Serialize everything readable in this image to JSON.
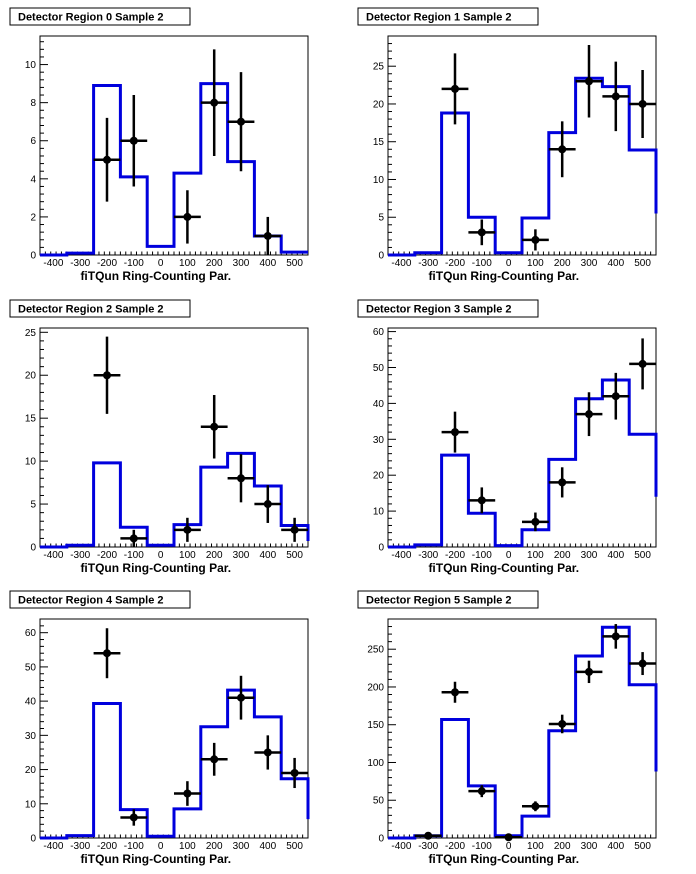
{
  "chart_data": [
    {
      "type": "histogram",
      "title": "Detector Region 0 Sample 2",
      "xlabel": "fiTQun Ring-Counting Par.",
      "xlim": [
        -450,
        550
      ],
      "ylim": [
        0,
        11.5
      ],
      "x_ticks": [
        -400,
        -300,
        -200,
        -100,
        0,
        100,
        200,
        300,
        400,
        500
      ],
      "y_ticks": [
        0,
        2,
        4,
        6,
        8,
        10
      ],
      "mc_bins": [
        -450,
        -350,
        -250,
        -150,
        -50,
        50,
        150,
        250,
        350,
        450,
        550
      ],
      "mc_values": [
        0,
        0.1,
        8.9,
        4.1,
        0.45,
        4.3,
        9.0,
        4.9,
        1.0,
        0.15
      ],
      "data_points": {
        "x": [
          -200,
          -100,
          100,
          200,
          300,
          400
        ],
        "y": [
          5,
          6,
          2,
          8,
          7,
          1
        ],
        "yerr": [
          2.2,
          2.4,
          1.4,
          2.8,
          2.6,
          1.0
        ]
      }
    },
    {
      "type": "histogram",
      "title": "Detector Region 1 Sample 2",
      "xlabel": "fiTQun Ring-Counting Par.",
      "xlim": [
        -450,
        550
      ],
      "ylim": [
        0,
        29
      ],
      "x_ticks": [
        -400,
        -300,
        -200,
        -100,
        0,
        100,
        200,
        300,
        400,
        500
      ],
      "y_ticks": [
        0,
        5,
        10,
        15,
        20,
        25
      ],
      "mc_bins": [
        -450,
        -350,
        -250,
        -150,
        -50,
        50,
        150,
        250,
        350,
        450,
        550
      ],
      "mc_values": [
        0,
        0.3,
        18.8,
        5.0,
        0.3,
        4.9,
        16.2,
        23.4,
        22.3,
        13.9
      ],
      "tail_value": 5.5,
      "data_points": {
        "x": [
          -200,
          -100,
          100,
          200,
          300,
          400,
          500
        ],
        "y": [
          22,
          3,
          2,
          14,
          23,
          21,
          20
        ],
        "yerr": [
          4.7,
          1.7,
          1.4,
          3.7,
          4.8,
          4.6,
          4.5
        ]
      }
    },
    {
      "type": "histogram",
      "title": "Detector Region 2 Sample 2",
      "xlabel": "fiTQun Ring-Counting Par.",
      "xlim": [
        -450,
        550
      ],
      "ylim": [
        0,
        25.5
      ],
      "x_ticks": [
        -400,
        -300,
        -200,
        -100,
        0,
        100,
        200,
        300,
        400,
        500
      ],
      "y_ticks": [
        0,
        5,
        10,
        15,
        20,
        25
      ],
      "mc_bins": [
        -450,
        -350,
        -250,
        -150,
        -50,
        50,
        150,
        250,
        350,
        450,
        550
      ],
      "mc_values": [
        0,
        0.2,
        9.8,
        2.3,
        0.2,
        2.6,
        9.3,
        10.9,
        7.1,
        2.5
      ],
      "tail_value": 0.7,
      "data_points": {
        "x": [
          -200,
          -100,
          100,
          200,
          300,
          400,
          500
        ],
        "y": [
          20,
          1,
          2,
          14,
          8,
          5,
          2
        ],
        "yerr": [
          4.5,
          1.0,
          1.4,
          3.7,
          2.8,
          2.2,
          1.4
        ]
      }
    },
    {
      "type": "histogram",
      "title": "Detector Region 3 Sample 2",
      "xlabel": "fiTQun Ring-Counting Par.",
      "xlim": [
        -450,
        550
      ],
      "ylim": [
        0,
        61
      ],
      "x_ticks": [
        -400,
        -300,
        -200,
        -100,
        0,
        100,
        200,
        300,
        400,
        500
      ],
      "y_ticks": [
        0,
        10,
        20,
        30,
        40,
        50,
        60
      ],
      "mc_bins": [
        -450,
        -350,
        -250,
        -150,
        -50,
        50,
        150,
        250,
        350,
        450,
        550
      ],
      "mc_values": [
        0,
        0.6,
        25.6,
        9.4,
        0.4,
        4.8,
        24.4,
        41.3,
        46.5,
        31.4
      ],
      "tail_value": 14,
      "data_points": {
        "x": [
          -200,
          -100,
          100,
          200,
          300,
          400,
          500
        ],
        "y": [
          32,
          13,
          7,
          18,
          37,
          42,
          51
        ],
        "yerr": [
          5.7,
          3.6,
          2.6,
          4.2,
          6.1,
          6.5,
          7.1
        ]
      }
    },
    {
      "type": "histogram",
      "title": "Detector Region 4 Sample 2",
      "xlabel": "fiTQun Ring-Counting Par.",
      "xlim": [
        -450,
        550
      ],
      "ylim": [
        0,
        64
      ],
      "x_ticks": [
        -400,
        -300,
        -200,
        -100,
        0,
        100,
        200,
        300,
        400,
        500
      ],
      "y_ticks": [
        0,
        10,
        20,
        30,
        40,
        50,
        60
      ],
      "mc_bins": [
        -450,
        -350,
        -250,
        -150,
        -50,
        50,
        150,
        250,
        350,
        450,
        550
      ],
      "mc_values": [
        0,
        0.7,
        39.3,
        8.3,
        0.5,
        8.5,
        32.5,
        43.2,
        35.4,
        17.3
      ],
      "tail_value": 5.5,
      "data_points": {
        "x": [
          -200,
          -100,
          100,
          200,
          300,
          400,
          500
        ],
        "y": [
          54,
          6,
          13,
          23,
          41,
          25,
          19
        ],
        "yerr": [
          7.3,
          2.4,
          3.6,
          4.8,
          6.4,
          5.0,
          4.4
        ]
      }
    },
    {
      "type": "histogram",
      "title": "Detector Region 5 Sample 2",
      "xlabel": "fiTQun Ring-Counting Par.",
      "xlim": [
        -450,
        550
      ],
      "ylim": [
        0,
        290
      ],
      "x_ticks": [
        -400,
        -300,
        -200,
        -100,
        0,
        100,
        200,
        300,
        400,
        500
      ],
      "y_ticks": [
        0,
        50,
        100,
        150,
        200,
        250
      ],
      "mc_bins": [
        -450,
        -350,
        -250,
        -150,
        -50,
        50,
        150,
        250,
        350,
        450,
        550
      ],
      "mc_values": [
        0,
        3,
        157,
        69,
        3,
        29,
        142,
        241,
        279,
        203
      ],
      "tail_value": 88,
      "data_points": {
        "x": [
          -300,
          -200,
          -100,
          0,
          100,
          200,
          300,
          400,
          500
        ],
        "y": [
          3,
          193,
          62,
          1,
          42,
          151,
          220,
          267,
          231
        ],
        "yerr": [
          1.7,
          13.9,
          7.9,
          1.0,
          6.5,
          12.3,
          14.8,
          16.3,
          15.2
        ]
      }
    }
  ],
  "colors": {
    "mc_line": "#0000dd",
    "data_marker": "#000000",
    "axis": "#000000"
  }
}
